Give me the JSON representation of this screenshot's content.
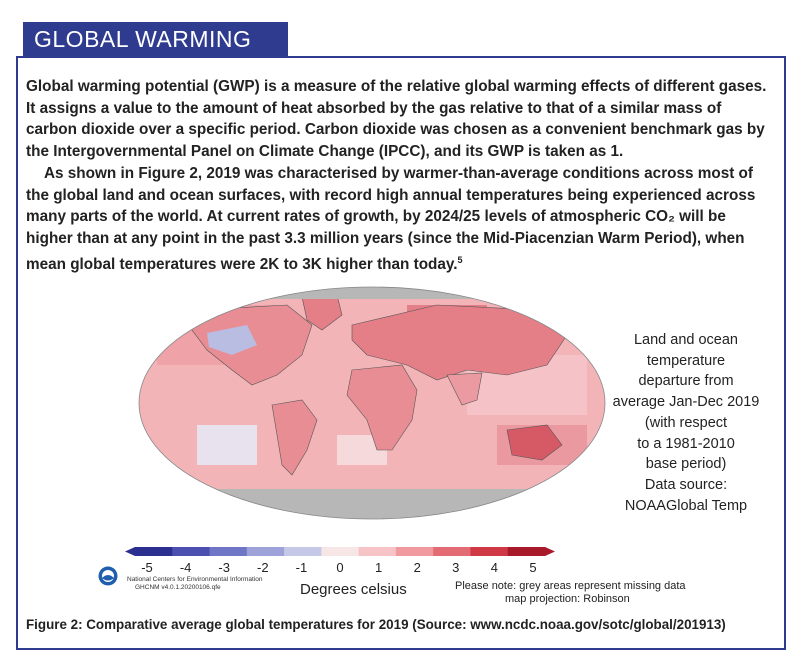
{
  "header": {
    "tab_label": "GLOBAL WARMING"
  },
  "article": {
    "paragraph1": "Global warming potential (GWP) is a measure of the relative global warming effects of different gases. It assigns a value to the amount of heat absorbed by the gas relative to that of a similar mass of carbon dioxide over a specific period. Carbon dioxide was chosen as a convenient benchmark gas by the Intergovernmental Panel on Climate Change (IPCC), and its GWP is taken as 1.",
    "paragraph2": "As shown in Figure 2, 2019 was characterised by warmer-than-average conditions across most of the global land and ocean surfaces, with record high annual temperatures being experienced across many parts of the world. At current rates of growth, by 2024/25 levels of atmospheric CO₂ will be higher than at any point in the past 3.3 million years (since the Mid-Piacenzian Warm Period), when mean global temperatures were 2K to 3K higher than today.",
    "footnote_mark": "5"
  },
  "figure": {
    "side_note": [
      "Land and ocean",
      "temperature",
      "departure from",
      "average Jan-Dec 2019",
      "(with respect",
      "to a 1981-2010",
      "base period)",
      "Data source:",
      "NOAAGlobal Temp"
    ],
    "scale_ticks": [
      "-5",
      "-4",
      "-3",
      "-2",
      "-1",
      "0",
      "1",
      "2",
      "3",
      "4",
      "5"
    ],
    "scale_colors": [
      "#2b2f8f",
      "#4a4fb0",
      "#7076c6",
      "#9da2d8",
      "#c6c8e8",
      "#f6e6e6",
      "#f6c3c6",
      "#f09aa0",
      "#e36b74",
      "#cf3945",
      "#a8192a"
    ],
    "noaa_text": [
      "National Centers for Environmental Information",
      "GHCNM v4.0.1.20200106.qfe"
    ],
    "scale_label": "Degrees celsius",
    "note_lines": [
      "Please note: grey areas represent missing data",
      "map projection: Robinson"
    ],
    "caption": "Figure 2: Comparative average global temperatures for 2019 (Source: www.ncdc.noaa.gov/sotc/global/201913)"
  },
  "colors": {
    "accent": "#2e3b8f",
    "missing_data": "#b7b7b7",
    "ocean_warm": "#f3b4b8",
    "land_warm": "#e98d95"
  }
}
